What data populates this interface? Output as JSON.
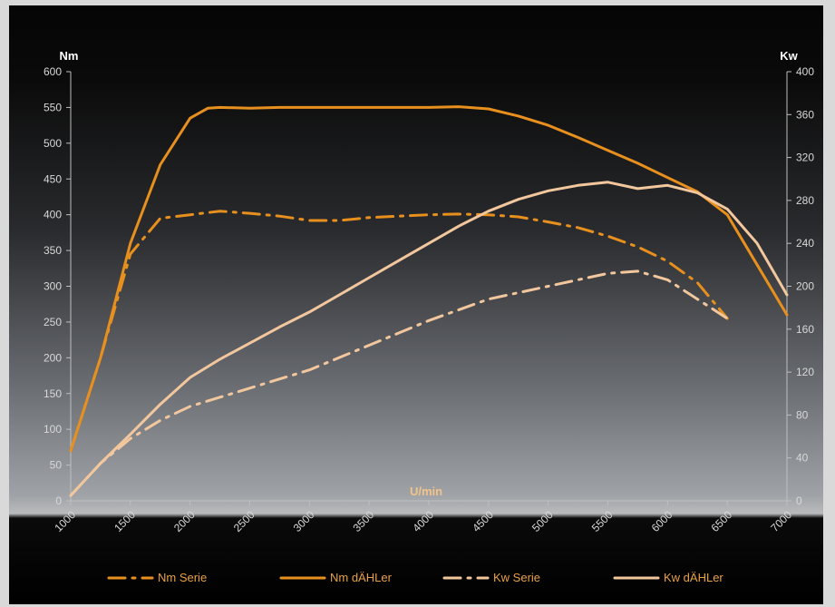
{
  "chart_data": {
    "type": "line",
    "xlabel": "U/min",
    "ylabel_left": "Nm",
    "ylabel_right": "Kw",
    "xlim": [
      1000,
      7000
    ],
    "ylim_left": [
      0,
      600
    ],
    "ylim_right": [
      0,
      400
    ],
    "x_ticks": [
      "1000",
      "1500",
      "2000",
      "2500",
      "3000",
      "3500",
      "4000",
      "4500",
      "5000",
      "5500",
      "6000",
      "6500",
      "7000"
    ],
    "y_left_ticks": [
      "0",
      "50",
      "100",
      "150",
      "200",
      "250",
      "300",
      "350",
      "400",
      "450",
      "500",
      "550",
      "600"
    ],
    "y_right_ticks": [
      "0",
      "40",
      "80",
      "120",
      "160",
      "200",
      "240",
      "280",
      "320",
      "360",
      "400"
    ],
    "grid": false,
    "legend_position": "bottom",
    "series": [
      {
        "name": "Nm Serie",
        "axis": "left",
        "style": "dashdot",
        "color": "#e8901e",
        "x": [
          1000,
          1250,
          1500,
          1750,
          2000,
          2250,
          2500,
          2750,
          3000,
          3250,
          3500,
          3750,
          4000,
          4250,
          4500,
          4750,
          5000,
          5250,
          5500,
          5750,
          6000,
          6250,
          6500
        ],
        "y": [
          70,
          200,
          345,
          395,
          400,
          405,
          402,
          398,
          392,
          392,
          396,
          398,
          400,
          401,
          400,
          397,
          390,
          382,
          370,
          355,
          335,
          305,
          255
        ]
      },
      {
        "name": "Nm dÄHLer",
        "axis": "left",
        "style": "solid",
        "color": "#e8901e",
        "x": [
          1000,
          1250,
          1500,
          1750,
          2000,
          2150,
          2250,
          2500,
          2750,
          3000,
          3500,
          4000,
          4250,
          4500,
          4750,
          5000,
          5250,
          5500,
          5750,
          6000,
          6250,
          6500,
          6750,
          7000
        ],
        "y": [
          70,
          200,
          360,
          470,
          535,
          549,
          550,
          549,
          550,
          550,
          550,
          550,
          551,
          548,
          538,
          525,
          508,
          490,
          472,
          452,
          432,
          400,
          330,
          260
        ]
      },
      {
        "name": "Kw Serie",
        "axis": "right",
        "style": "dashdot",
        "color": "#f2c79e",
        "x": [
          1000,
          1250,
          1500,
          1750,
          2000,
          2500,
          3000,
          3500,
          4000,
          4500,
          5000,
          5250,
          5500,
          5750,
          6000,
          6250,
          6500
        ],
        "y": [
          5,
          35,
          58,
          75,
          88,
          105,
          122,
          145,
          168,
          188,
          200,
          206,
          212,
          214,
          206,
          188,
          170
        ]
      },
      {
        "name": "Kw dÄHLer",
        "axis": "right",
        "style": "solid",
        "color": "#f2c79e",
        "x": [
          1000,
          1250,
          1500,
          1750,
          2000,
          2250,
          2500,
          2750,
          3000,
          3250,
          3500,
          3750,
          4000,
          4250,
          4500,
          4750,
          5000,
          5250,
          5500,
          5750,
          6000,
          6250,
          6500,
          6750,
          7000
        ],
        "y": [
          5,
          35,
          62,
          90,
          115,
          132,
          147,
          162,
          176,
          192,
          208,
          224,
          240,
          256,
          270,
          281,
          289,
          294,
          297,
          291,
          294,
          287,
          272,
          240,
          192
        ]
      }
    ]
  }
}
